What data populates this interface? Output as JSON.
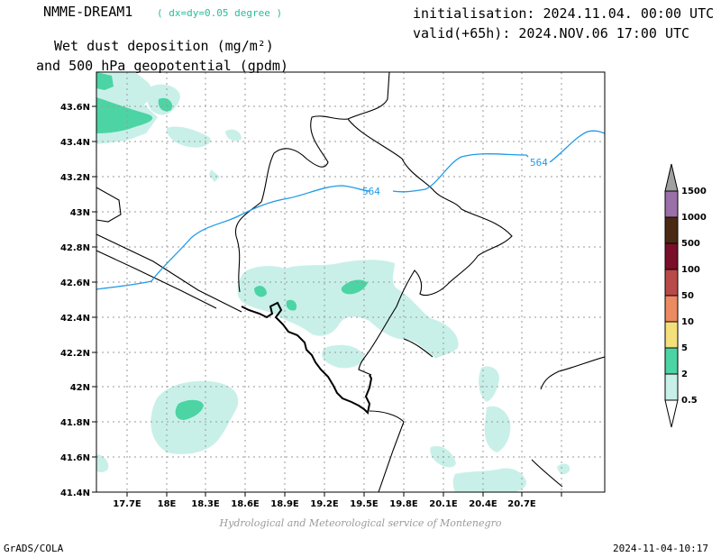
{
  "header": {
    "model": "NMME-DREAM1",
    "resolution": "( dx=dy=0.05 degree )",
    "variable_line1": "Wet dust deposition (mg/m²)",
    "variable_line2": "and 500 hPa geopotential (gpdm)",
    "init": "initialisation: 2024.11.04. 00:00 UTC",
    "valid": "valid(+65h): 2024.NOV.06 17:00 UTC"
  },
  "axes": {
    "lat_labels": [
      "43.6N",
      "43.4N",
      "43.2N",
      "43N",
      "42.8N",
      "42.6N",
      "42.4N",
      "42.2N",
      "42N",
      "41.8N",
      "41.6N",
      "41.4N"
    ],
    "lon_labels": [
      "17.7E",
      "18E",
      "18.3E",
      "18.6E",
      "18.9E",
      "19.2E",
      "19.5E",
      "19.8E",
      "20.1E",
      "20.4E",
      "20.7E"
    ]
  },
  "contours": {
    "label_a": "564",
    "label_b": "564"
  },
  "legend": {
    "levels": [
      "1500",
      "1000",
      "500",
      "100",
      "50",
      "10",
      "5",
      "2",
      "0.5"
    ],
    "colors": [
      "#a0a0a0",
      "#9b6fa8",
      "#4a2a14",
      "#7a0f2a",
      "#b84a4a",
      "#ec8a62",
      "#f4e07a",
      "#4cd4a4",
      "#c8f0e8"
    ]
  },
  "colors": {
    "contour": "#1f9ae6",
    "shade_light": "#c8f0e8",
    "shade_dark": "#4cd4a4",
    "resolution_text": "#22c099"
  },
  "footer": {
    "credit": "Hydrological and Meteorological service of Montenegro",
    "left": "GrADS/COLA",
    "right": "2024-11-04-10:17"
  }
}
